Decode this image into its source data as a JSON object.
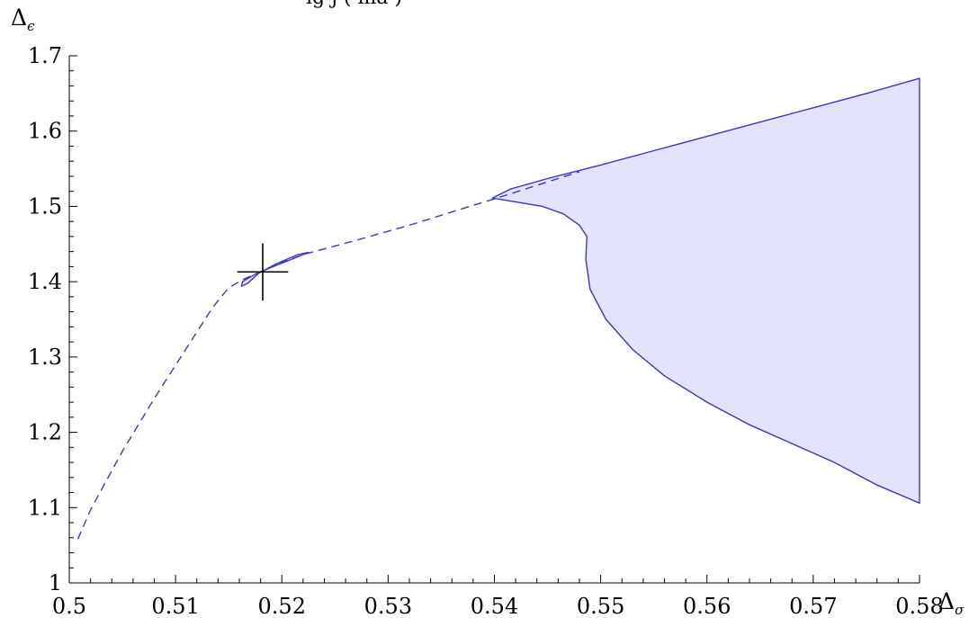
{
  "chart_data": {
    "type": "area",
    "title": "",
    "x_axis": {
      "label": "Δ",
      "label_subscript": "σ",
      "range": [
        0.5,
        0.58
      ],
      "ticks": [
        0.5,
        0.51,
        0.52,
        0.53,
        0.54,
        0.55,
        0.56,
        0.57,
        0.58
      ],
      "tick_labels": [
        "0.5",
        "0.51",
        "0.52",
        "0.53",
        "0.54",
        "0.55",
        "0.56",
        "0.57",
        "0.58"
      ]
    },
    "y_axis": {
      "label": "Δ",
      "label_subscript": "ϵ",
      "range": [
        1.0,
        1.7
      ],
      "ticks": [
        1.0,
        1.1,
        1.2,
        1.3,
        1.4,
        1.5,
        1.6,
        1.7
      ],
      "tick_labels": [
        "1",
        "1.1",
        "1.2",
        "1.3",
        "1.4",
        "1.5",
        "1.6",
        "1.7"
      ]
    },
    "grid": false,
    "legend": "none",
    "colors": {
      "boundary": "#3a3ab8",
      "fill": "#e2e2fa",
      "marker": "#000000"
    },
    "series": [
      {
        "kind": "dashed-line",
        "points": [
          [
            0.5008,
            1.058
          ],
          [
            0.502,
            1.097
          ],
          [
            0.505,
            1.175
          ],
          [
            0.508,
            1.245
          ],
          [
            0.511,
            1.311
          ],
          [
            0.5135,
            1.366
          ],
          [
            0.515,
            1.392
          ],
          [
            0.5165,
            1.404
          ],
          [
            0.518,
            1.413
          ],
          [
            0.5195,
            1.423
          ],
          [
            0.522,
            1.436
          ],
          [
            0.527,
            1.455
          ],
          [
            0.532,
            1.475
          ],
          [
            0.537,
            1.497
          ],
          [
            0.54,
            1.51
          ],
          [
            0.544,
            1.528
          ],
          [
            0.548,
            1.546
          ]
        ]
      },
      {
        "kind": "small-island",
        "points": [
          [
            0.5162,
            1.394
          ],
          [
            0.5163,
            1.4
          ],
          [
            0.5175,
            1.41
          ],
          [
            0.519,
            1.419
          ],
          [
            0.5208,
            1.429
          ],
          [
            0.5225,
            1.439
          ],
          [
            0.5215,
            1.436
          ],
          [
            0.5195,
            1.424
          ],
          [
            0.5178,
            1.411
          ],
          [
            0.5168,
            1.398
          ],
          [
            0.5162,
            1.394
          ]
        ]
      },
      {
        "kind": "allowed-region",
        "points": [
          [
            0.5398,
            1.511
          ],
          [
            0.5415,
            1.523
          ],
          [
            0.545,
            1.537
          ],
          [
            0.55,
            1.555
          ],
          [
            0.555,
            1.574
          ],
          [
            0.56,
            1.593
          ],
          [
            0.565,
            1.612
          ],
          [
            0.57,
            1.631
          ],
          [
            0.575,
            1.65
          ],
          [
            0.58,
            1.67
          ],
          [
            0.58,
            1.106
          ],
          [
            0.576,
            1.13
          ],
          [
            0.572,
            1.16
          ],
          [
            0.568,
            1.185
          ],
          [
            0.564,
            1.21
          ],
          [
            0.56,
            1.24
          ],
          [
            0.556,
            1.275
          ],
          [
            0.553,
            1.31
          ],
          [
            0.5505,
            1.35
          ],
          [
            0.549,
            1.39
          ],
          [
            0.5486,
            1.43
          ],
          [
            0.5487,
            1.46
          ],
          [
            0.548,
            1.475
          ],
          [
            0.5465,
            1.49
          ],
          [
            0.5445,
            1.5
          ],
          [
            0.542,
            1.506
          ],
          [
            0.5398,
            1.511
          ]
        ]
      }
    ],
    "marker": {
      "shape": "cross",
      "x": 0.5182,
      "y": 1.413,
      "dx": 0.0024,
      "dy": 0.038
    }
  }
}
